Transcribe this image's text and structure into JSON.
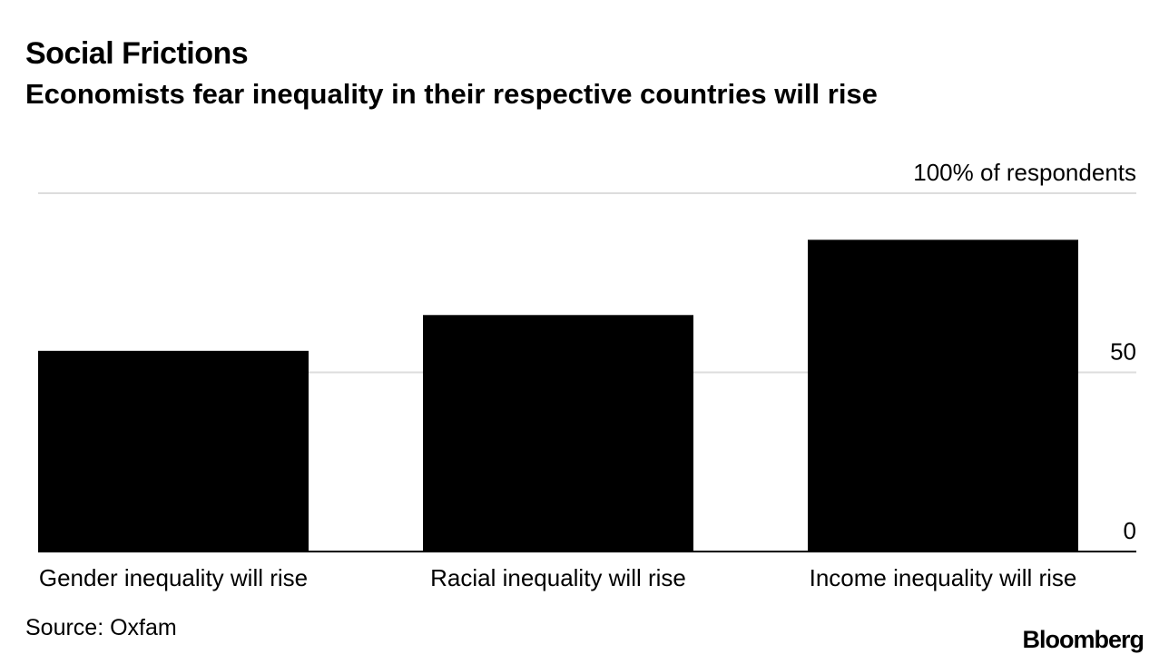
{
  "header": {
    "title": "Social Frictions",
    "subtitle": "Economists fear inequality in their respective countries will rise"
  },
  "chart_data": {
    "type": "bar",
    "title": "Social Frictions",
    "subtitle": "Economists fear inequality in their respective countries will rise",
    "categories": [
      "Gender inequality will rise",
      "Racial inequality will rise",
      "Income inequality will rise"
    ],
    "values": [
      56,
      66,
      87
    ],
    "ylim": [
      0,
      100
    ],
    "yticks": [
      0,
      50,
      100
    ],
    "ytick_labels": [
      "0",
      "50",
      "100% of respondents"
    ],
    "xlabel": "",
    "ylabel": "",
    "grid": true,
    "axis_position": "right",
    "bar_color": "#000000",
    "grid_color": "#dddddd"
  },
  "footer": {
    "source": "Source: Oxfam",
    "brand": "Bloomberg"
  }
}
